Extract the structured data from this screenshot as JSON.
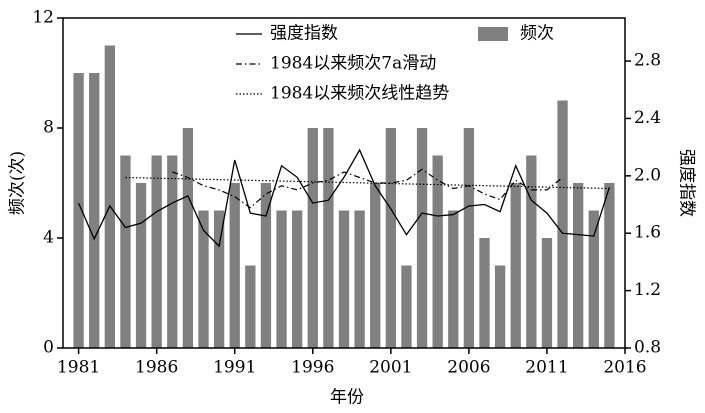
{
  "chart_data": {
    "type": "bar",
    "xlabel": "年份",
    "ylabel": "频次(次)",
    "y2label": "强度指数",
    "xlim": [
      1980,
      2016
    ],
    "xticks": [
      1981,
      1986,
      1991,
      1996,
      2001,
      2006,
      2011,
      2016
    ],
    "ylim": [
      0,
      12
    ],
    "yticks": [
      0,
      4,
      8,
      12
    ],
    "y2lim": [
      0.8,
      3.1
    ],
    "y2ticks": [
      0.8,
      1.2,
      1.6,
      2.0,
      2.4,
      2.8
    ],
    "series": [
      {
        "name": "强度指数",
        "type": "line",
        "dash": "solid",
        "color": "#000000",
        "axis": "y2",
        "x": [
          1981,
          1982,
          1983,
          1984,
          1985,
          1986,
          1987,
          1988,
          1989,
          1990,
          1991,
          1992,
          1993,
          1994,
          1995,
          1996,
          1997,
          1998,
          1999,
          2000,
          2001,
          2002,
          2003,
          2004,
          2005,
          2006,
          2007,
          2008,
          2009,
          2010,
          2011,
          2012,
          2013,
          2014,
          2015
        ],
        "values": [
          1.81,
          1.56,
          1.79,
          1.64,
          1.67,
          1.75,
          1.81,
          1.86,
          1.62,
          1.51,
          2.11,
          1.74,
          1.72,
          2.07,
          1.99,
          1.81,
          1.83,
          1.99,
          2.18,
          1.93,
          1.77,
          1.59,
          1.74,
          1.72,
          1.73,
          1.79,
          1.8,
          1.75,
          2.07,
          1.83,
          1.74,
          1.6,
          1.59,
          1.58,
          1.92
        ]
      },
      {
        "name": "频次",
        "type": "bar",
        "color": "#808080",
        "x": [
          1981,
          1982,
          1983,
          1984,
          1985,
          1986,
          1987,
          1988,
          1989,
          1990,
          1991,
          1992,
          1993,
          1994,
          1995,
          1996,
          1997,
          1998,
          1999,
          2000,
          2001,
          2002,
          2003,
          2004,
          2005,
          2006,
          2007,
          2008,
          2009,
          2010,
          2011,
          2012,
          2013,
          2014,
          2015
        ],
        "values": [
          10,
          10,
          11,
          7,
          6,
          7,
          7,
          8,
          5,
          5,
          6,
          3,
          6,
          5,
          5,
          8,
          8,
          5,
          5,
          6,
          8,
          3,
          8,
          7,
          5,
          8,
          4,
          3,
          6,
          7,
          4,
          9,
          6,
          5,
          6
        ]
      },
      {
        "name": "1984以来频次7a滑动",
        "type": "line",
        "dash": "dashdot",
        "color": "#000000",
        "x": [
          1987,
          1988,
          1989,
          1990,
          1991,
          1992,
          1993,
          1994,
          1995,
          1996,
          1997,
          1998,
          1999,
          2000,
          2001,
          2002,
          2003,
          2004,
          2005,
          2006,
          2007,
          2008,
          2009,
          2010,
          2011,
          2012
        ],
        "values": [
          6.4,
          6.2,
          5.9,
          5.75,
          5.5,
          5.1,
          5.6,
          5.9,
          5.75,
          6.0,
          6.1,
          6.4,
          6.2,
          6.0,
          6.0,
          6.1,
          6.5,
          6.1,
          5.8,
          5.9,
          5.6,
          5.4,
          6.1,
          5.75,
          5.75,
          6.2
        ]
      },
      {
        "name": "1984以来频次线性趋势",
        "type": "line",
        "dash": "dotted",
        "color": "#000000",
        "x": [
          1984,
          2015
        ],
        "values": [
          6.2,
          5.8
        ]
      }
    ]
  }
}
